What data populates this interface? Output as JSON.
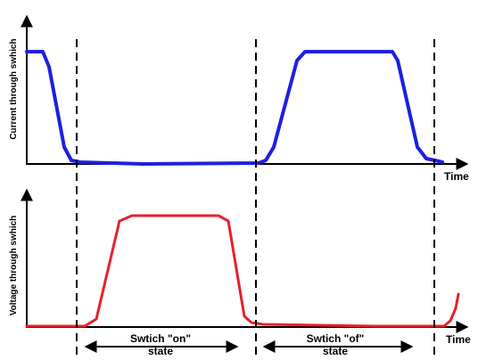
{
  "top_plot": {
    "ylabel": "Current through swhich",
    "xlabel": "Time",
    "color": "#1f1fe0"
  },
  "bottom_plot": {
    "ylabel": "Voltage through swhich",
    "xlabel": "Time",
    "color": "#e8202a"
  },
  "annotations": {
    "on_label_line1": "Swtich \"on\"",
    "on_label_line2": "state",
    "off_label_line1": "Swtich \"of\"",
    "off_label_line2": "state"
  }
}
